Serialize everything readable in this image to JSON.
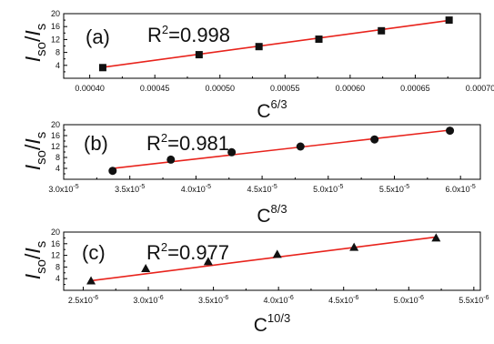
{
  "chart_data": [
    {
      "type": "scatter",
      "panel_label": "(a)",
      "fit_r2": "0.998",
      "y_label": "I_so/I_s",
      "x_label_base": "C",
      "x_label_exp": "6/3",
      "x_lim": [
        0.00038,
        0.0007
      ],
      "y_lim": [
        0,
        20
      ],
      "x_ticks": [
        "0.00040",
        "0.00045",
        "0.00050",
        "0.00055",
        "0.00060",
        "0.00065",
        "0.00070"
      ],
      "x_tick_values": [
        0.0004,
        0.00045,
        0.0005,
        0.00055,
        0.0006,
        0.00065,
        0.0007
      ],
      "y_ticks": [
        "4",
        "8",
        "12",
        "16",
        "20"
      ],
      "marker": "square",
      "x": [
        0.00041,
        0.000484,
        0.00053,
        0.000576,
        0.000624,
        0.000676
      ],
      "y": [
        3.3,
        7.3,
        9.8,
        12.1,
        14.7,
        18.0
      ],
      "fit_line": {
        "x": [
          0.00041,
          0.000676
        ],
        "y": [
          3.4,
          17.9
        ]
      },
      "colors": {
        "points": "#111111",
        "fit": "#e8231c"
      }
    },
    {
      "type": "scatter",
      "panel_label": "(b)",
      "fit_r2": "0.981",
      "y_label": "I_so/I_s",
      "x_label_base": "C",
      "x_label_exp": "8/3",
      "x_lim": [
        3e-05,
        6.15e-05
      ],
      "y_lim": [
        0,
        20
      ],
      "x_ticks": [
        "3.0x10",
        "3.5x10",
        "4.0x10",
        "4.5x10",
        "5.0x10",
        "5.5x10",
        "6.0x10"
      ],
      "x_tick_exp": "-5",
      "x_tick_values": [
        3e-05,
        3.5e-05,
        4e-05,
        4.5e-05,
        5e-05,
        5.5e-05,
        6e-05
      ],
      "y_ticks": [
        "4",
        "8",
        "12",
        "16",
        "20"
      ],
      "marker": "circle",
      "x": [
        3.37e-05,
        3.81e-05,
        4.27e-05,
        4.79e-05,
        5.35e-05,
        5.92e-05
      ],
      "y": [
        3.1,
        7.2,
        9.9,
        12.0,
        14.6,
        17.8
      ],
      "fit_line": {
        "x": [
          3.37e-05,
          5.92e-05
        ],
        "y": [
          4.0,
          18.0
        ]
      },
      "colors": {
        "points": "#111111",
        "fit": "#e8231c"
      }
    },
    {
      "type": "scatter",
      "panel_label": "(c)",
      "fit_r2": "0.977",
      "y_label": "I_so/I_s",
      "x_label_base": "C",
      "x_label_exp": "10/3",
      "x_lim": [
        2.35e-06,
        5.55e-06
      ],
      "y_lim": [
        0,
        20
      ],
      "x_ticks": [
        "2.5x10",
        "3.0x10",
        "3.5x10",
        "4.0x10",
        "4.5x10",
        "5.0x10",
        "5.5x10"
      ],
      "x_tick_exp": "-6",
      "x_tick_values": [
        2.5e-06,
        3e-06,
        3.5e-06,
        4e-06,
        4.5e-06,
        5e-06,
        5.5e-06
      ],
      "y_ticks": [
        "4",
        "8",
        "12",
        "16",
        "20"
      ],
      "marker": "triangle",
      "x": [
        2.56e-06,
        2.98e-06,
        3.46e-06,
        3.99e-06,
        4.58e-06,
        5.21e-06
      ],
      "y": [
        3.3,
        7.5,
        9.9,
        12.4,
        14.8,
        18.0
      ],
      "fit_line": {
        "x": [
          2.56e-06,
          5.21e-06
        ],
        "y": [
          3.3,
          18.3
        ]
      },
      "colors": {
        "points": "#111111",
        "fit": "#e8231c"
      }
    }
  ]
}
